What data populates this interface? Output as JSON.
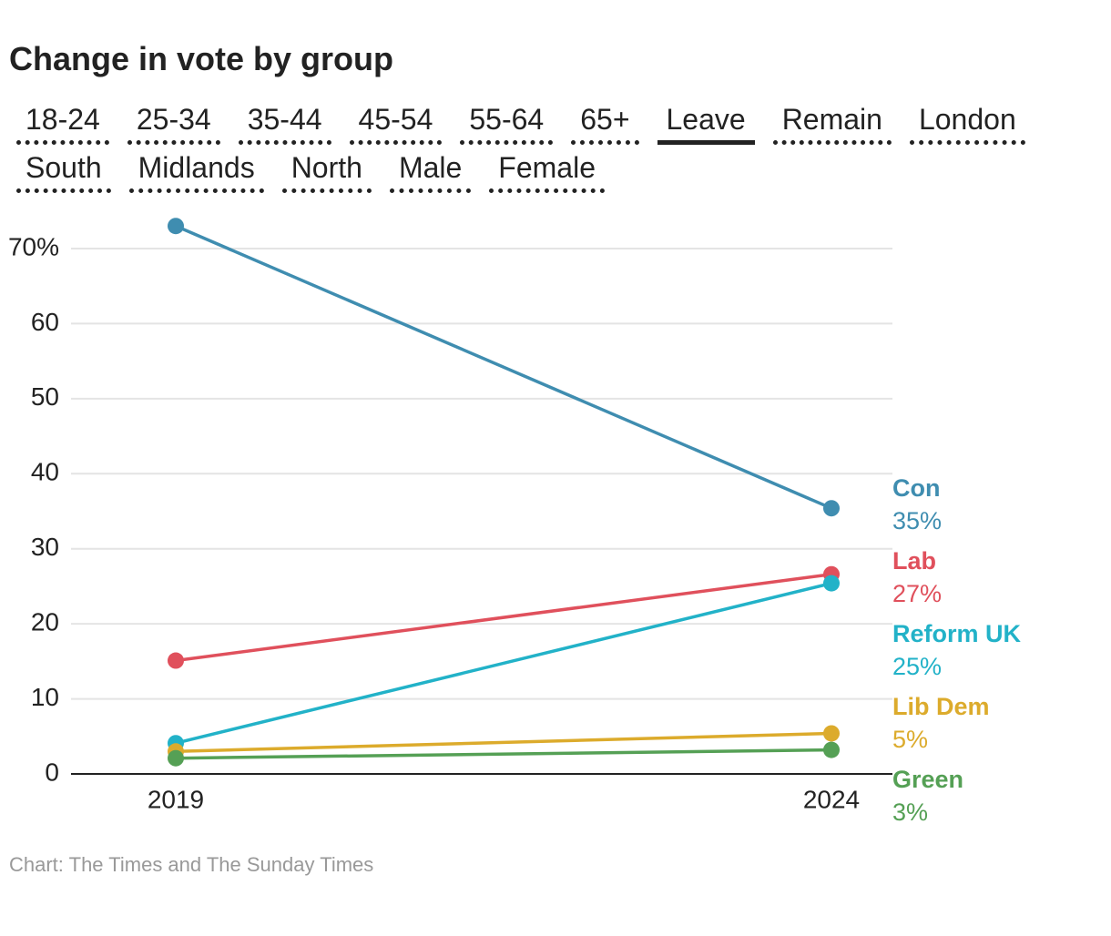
{
  "chart_data": {
    "type": "line",
    "title": "Change in vote by group",
    "tabs": [
      "18-24",
      "25-34",
      "35-44",
      "45-54",
      "55-64",
      "65+",
      "Leave",
      "Remain",
      "London",
      "South",
      "Midlands",
      "North",
      "Male",
      "Female"
    ],
    "selected_tab": 6,
    "categories": [
      "2019",
      "2024"
    ],
    "series": [
      {
        "name": "Con",
        "color": "#3f8db0",
        "values": [
          73.0,
          35.4
        ],
        "value_labels": [
          null,
          "35%"
        ]
      },
      {
        "name": "Lab",
        "color": "#e0505c",
        "values": [
          15.1,
          26.6
        ],
        "value_labels": [
          null,
          "27%"
        ]
      },
      {
        "name": "Reform UK",
        "color": "#22b2c8",
        "values": [
          4.1,
          25.4
        ],
        "value_labels": [
          null,
          "25%"
        ]
      },
      {
        "name": "Lib Dem",
        "color": "#dcab2c",
        "values": [
          3.0,
          5.4
        ],
        "value_labels": [
          null,
          "5%"
        ]
      },
      {
        "name": "Green",
        "color": "#55a055",
        "values": [
          2.1,
          3.2
        ],
        "value_labels": [
          null,
          "3%"
        ]
      }
    ],
    "ylim": [
      0,
      74
    ],
    "yticks": [
      0,
      10,
      20,
      30,
      40,
      50,
      60,
      {
        "value": 70,
        "label": "70%"
      }
    ],
    "grid": true,
    "source": "Chart: The Times and The Sunday Times"
  }
}
